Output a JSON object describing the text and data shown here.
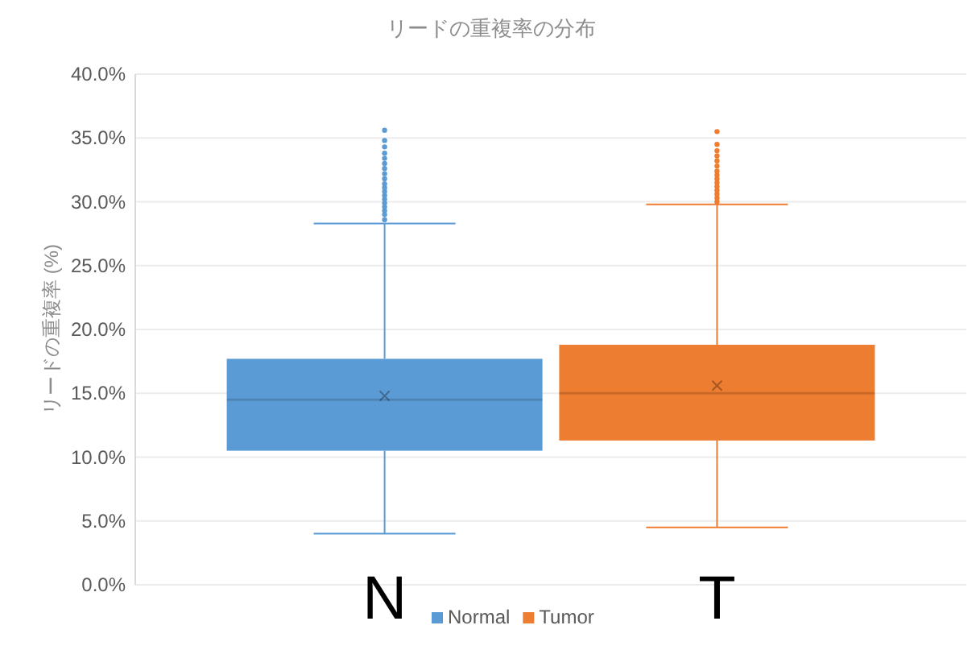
{
  "chart_data": {
    "type": "box",
    "title": "リードの重複率の分布",
    "ylabel": "リードの重複率 (%)",
    "categories": [
      "N",
      "T"
    ],
    "ylim": [
      0,
      40
    ],
    "yticks": [
      {
        "value": 0,
        "label": "0.0%"
      },
      {
        "value": 5,
        "label": "5.0%"
      },
      {
        "value": 10,
        "label": "10.0%"
      },
      {
        "value": 15,
        "label": "15.0%"
      },
      {
        "value": 20,
        "label": "20.0%"
      },
      {
        "value": 25,
        "label": "25.0%"
      },
      {
        "value": 30,
        "label": "30.0%"
      },
      {
        "value": 35,
        "label": "35.0%"
      },
      {
        "value": 40,
        "label": "40.0%"
      }
    ],
    "grid": "y",
    "legend": "bottom",
    "series": [
      {
        "name": "Normal",
        "color": "#5b9bd5",
        "boxes": [
          {
            "low": 4.0,
            "q1": 10.5,
            "median": 14.5,
            "q3": 17.7,
            "high": 28.3,
            "mean": 14.8,
            "outliers": [
              28.6,
              29.0,
              29.3,
              29.6,
              29.9,
              30.2,
              30.5,
              30.8,
              31.1,
              31.4,
              31.8,
              32.2,
              32.6,
              33.0,
              33.4,
              33.8,
              34.3,
              34.8,
              35.6
            ]
          },
          null
        ]
      },
      {
        "name": "Tumor",
        "color": "#ed7d31",
        "boxes": [
          null,
          {
            "low": 4.5,
            "q1": 11.3,
            "median": 15.0,
            "q3": 18.8,
            "high": 29.8,
            "mean": 15.6,
            "outliers": [
              30.0,
              30.3,
              30.6,
              30.9,
              31.2,
              31.5,
              31.8,
              32.1,
              32.4,
              32.8,
              33.2,
              33.6,
              34.0,
              34.5,
              35.5
            ]
          }
        ]
      }
    ]
  }
}
